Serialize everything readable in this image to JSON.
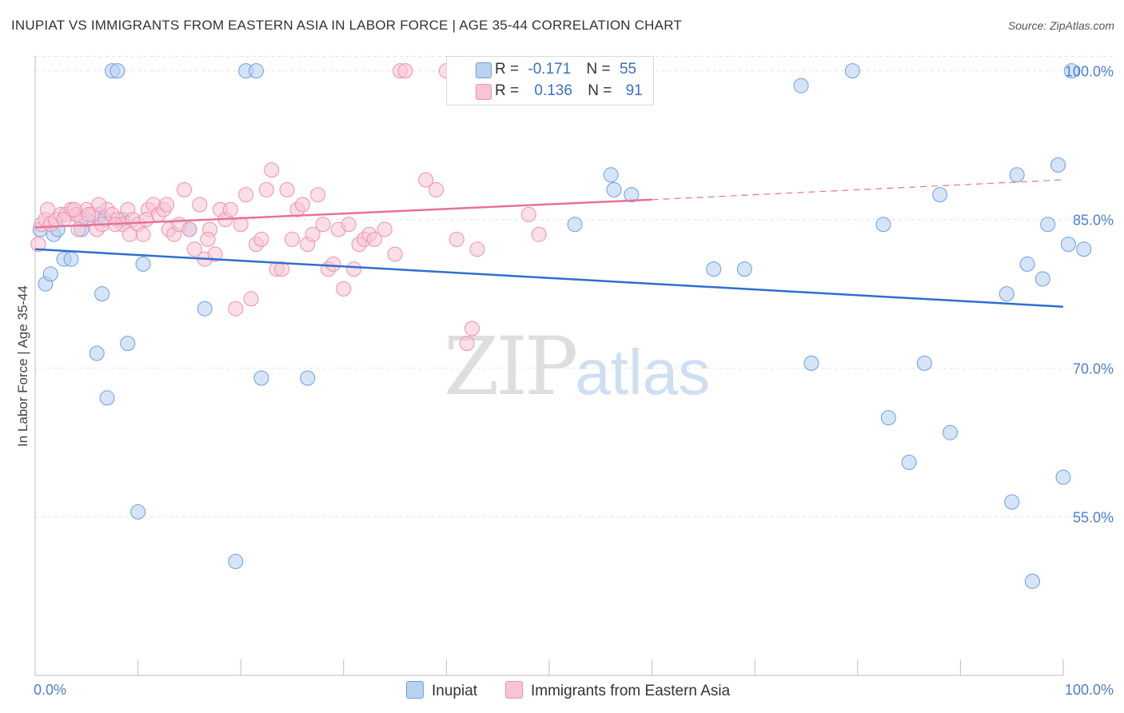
{
  "header": {
    "title": "INUPIAT VS IMMIGRANTS FROM EASTERN ASIA IN LABOR FORCE | AGE 35-44 CORRELATION CHART",
    "source": "Source: ZipAtlas.com"
  },
  "legend": {
    "series1": {
      "r_label": "R =",
      "r_value": "-0.171",
      "n_label": "N =",
      "n_value": "55"
    },
    "series2": {
      "r_label": "R =",
      "r_value": "0.136",
      "n_label": "N =",
      "n_value": "91"
    }
  },
  "watermark": {
    "zip": "ZIP",
    "atlas": "atlas"
  },
  "colors": {
    "blue_fill": "#b9d2f0",
    "blue_stroke": "#6d9fe0",
    "blue_line": "#2e6fd0",
    "pink_fill": "#f8c4d4",
    "pink_stroke": "#ee90ae",
    "pink_line": "#e8709a",
    "axis_label": "#4a7fd0",
    "grid": "#e3e3e3"
  },
  "chart_data": {
    "type": "scatter",
    "title": "INUPIAT VS IMMIGRANTS FROM EASTERN ASIA IN LABOR FORCE | AGE 35-44 CORRELATION CHART",
    "xlabel": "",
    "ylabel": "In Labor Force | Age 35-44",
    "xlim": [
      0,
      100
    ],
    "ylim": [
      39,
      101.5
    ],
    "x_tick_labels": [
      "0.0%",
      "100.0%"
    ],
    "y_ticks": [
      55,
      70,
      85,
      100
    ],
    "y_tick_labels": [
      "55.0%",
      "70.0%",
      "85.0%",
      "100.0%"
    ],
    "grid": true,
    "legend_position": "top-center",
    "series": [
      {
        "name": "Inupiat",
        "color": "#6d9fe0",
        "trend": {
          "x": [
            0,
            100
          ],
          "y": [
            82.0,
            76.2
          ]
        },
        "points": [
          [
            0.5,
            84.0
          ],
          [
            1.0,
            78.5
          ],
          [
            1.5,
            79.5
          ],
          [
            1.8,
            83.5
          ],
          [
            2.2,
            84.0
          ],
          [
            2.8,
            81.0
          ],
          [
            3.5,
            81.0
          ],
          [
            4.0,
            85.5
          ],
          [
            4.5,
            84.0
          ],
          [
            5.0,
            85.0
          ],
          [
            6.0,
            71.5
          ],
          [
            6.3,
            85.5
          ],
          [
            6.5,
            77.5
          ],
          [
            7.0,
            67.0
          ],
          [
            7.5,
            100.0
          ],
          [
            8.0,
            100.0
          ],
          [
            8.5,
            85.0
          ],
          [
            9.0,
            72.5
          ],
          [
            10.0,
            55.5
          ],
          [
            10.5,
            80.5
          ],
          [
            15.0,
            84.0
          ],
          [
            16.5,
            76.0
          ],
          [
            19.5,
            50.5
          ],
          [
            20.5,
            100.0
          ],
          [
            21.5,
            100.0
          ],
          [
            22.0,
            69.0
          ],
          [
            26.5,
            69.0
          ],
          [
            52.5,
            84.5
          ],
          [
            56.0,
            89.5
          ],
          [
            56.3,
            88.0
          ],
          [
            58.0,
            87.5
          ],
          [
            66.0,
            80.0
          ],
          [
            69.0,
            80.0
          ],
          [
            74.5,
            98.5
          ],
          [
            75.5,
            70.5
          ],
          [
            79.5,
            100.0
          ],
          [
            82.5,
            84.5
          ],
          [
            83.0,
            65.0
          ],
          [
            85.0,
            60.5
          ],
          [
            86.5,
            70.5
          ],
          [
            88.0,
            87.5
          ],
          [
            89.0,
            63.5
          ],
          [
            94.5,
            77.5
          ],
          [
            95.0,
            56.5
          ],
          [
            95.5,
            89.5
          ],
          [
            96.5,
            80.5
          ],
          [
            97.0,
            48.5
          ],
          [
            98.0,
            79.0
          ],
          [
            98.5,
            84.5
          ],
          [
            99.5,
            90.5
          ],
          [
            100.0,
            59.0
          ],
          [
            100.5,
            82.5
          ],
          [
            102.0,
            82.0
          ],
          [
            100.8,
            100.0
          ],
          [
            6.8,
            85.0
          ]
        ]
      },
      {
        "name": "Immigrants from Eastern Asia",
        "color": "#ee90ae",
        "trend": {
          "x": [
            0,
            60
          ],
          "y": [
            84.2,
            87.0
          ]
        },
        "trend_dashed": {
          "x": [
            60,
            100
          ],
          "y": [
            87.0,
            89.0
          ]
        },
        "points": [
          [
            0.3,
            82.5
          ],
          [
            0.6,
            84.5
          ],
          [
            1.0,
            85.0
          ],
          [
            1.5,
            84.5
          ],
          [
            2.0,
            85.0
          ],
          [
            2.5,
            85.5
          ],
          [
            3.0,
            85.5
          ],
          [
            3.5,
            86.0
          ],
          [
            4.0,
            85.5
          ],
          [
            4.5,
            85.0
          ],
          [
            5.0,
            86.0
          ],
          [
            5.5,
            85.5
          ],
          [
            6.0,
            84.0
          ],
          [
            6.5,
            84.5
          ],
          [
            7.0,
            86.0
          ],
          [
            7.5,
            85.5
          ],
          [
            8.0,
            85.0
          ],
          [
            8.5,
            84.5
          ],
          [
            9.0,
            86.0
          ],
          [
            9.5,
            85.0
          ],
          [
            10.0,
            84.5
          ],
          [
            10.5,
            83.5
          ],
          [
            11.0,
            86.0
          ],
          [
            11.5,
            86.5
          ],
          [
            12.0,
            85.5
          ],
          [
            12.5,
            86.0
          ],
          [
            13.0,
            84.0
          ],
          [
            13.5,
            83.5
          ],
          [
            14.0,
            84.5
          ],
          [
            14.5,
            88.0
          ],
          [
            15.0,
            84.0
          ],
          [
            15.5,
            82.0
          ],
          [
            16.0,
            86.5
          ],
          [
            16.5,
            81.0
          ],
          [
            17.0,
            84.0
          ],
          [
            17.5,
            81.5
          ],
          [
            18.0,
            86.0
          ],
          [
            18.5,
            85.0
          ],
          [
            19.0,
            86.0
          ],
          [
            19.5,
            76.0
          ],
          [
            20.0,
            84.5
          ],
          [
            20.5,
            87.5
          ],
          [
            21.0,
            77.0
          ],
          [
            21.5,
            82.5
          ],
          [
            22.0,
            83.0
          ],
          [
            22.5,
            88.0
          ],
          [
            23.0,
            90.0
          ],
          [
            23.5,
            80.0
          ],
          [
            24.0,
            80.0
          ],
          [
            24.5,
            88.0
          ],
          [
            25.0,
            83.0
          ],
          [
            25.5,
            86.0
          ],
          [
            26.0,
            86.5
          ],
          [
            26.5,
            82.5
          ],
          [
            27.0,
            83.5
          ],
          [
            27.5,
            87.5
          ],
          [
            28.0,
            84.5
          ],
          [
            28.5,
            80.0
          ],
          [
            29.0,
            80.5
          ],
          [
            29.5,
            84.0
          ],
          [
            30.0,
            78.0
          ],
          [
            30.5,
            84.5
          ],
          [
            31.0,
            80.0
          ],
          [
            31.5,
            82.5
          ],
          [
            32.0,
            83.0
          ],
          [
            32.5,
            83.5
          ],
          [
            33.0,
            83.0
          ],
          [
            34.0,
            84.0
          ],
          [
            35.0,
            81.5
          ],
          [
            35.5,
            100.0
          ],
          [
            36.0,
            100.0
          ],
          [
            38.0,
            89.0
          ],
          [
            39.0,
            88.0
          ],
          [
            40.0,
            100.0
          ],
          [
            41.0,
            83.0
          ],
          [
            42.0,
            72.5
          ],
          [
            42.5,
            74.0
          ],
          [
            43.0,
            82.0
          ],
          [
            48.0,
            85.5
          ],
          [
            49.0,
            83.5
          ],
          [
            1.2,
            86.0
          ],
          [
            2.8,
            85.0
          ],
          [
            3.8,
            86.0
          ],
          [
            4.2,
            84.0
          ],
          [
            5.2,
            85.5
          ],
          [
            6.2,
            86.5
          ],
          [
            7.8,
            84.5
          ],
          [
            9.2,
            83.5
          ],
          [
            10.8,
            85.0
          ],
          [
            12.8,
            86.5
          ],
          [
            16.8,
            83.0
          ]
        ]
      }
    ]
  },
  "bottom_legend": {
    "series1": "Inupiat",
    "series2": "Immigrants from Eastern Asia"
  }
}
